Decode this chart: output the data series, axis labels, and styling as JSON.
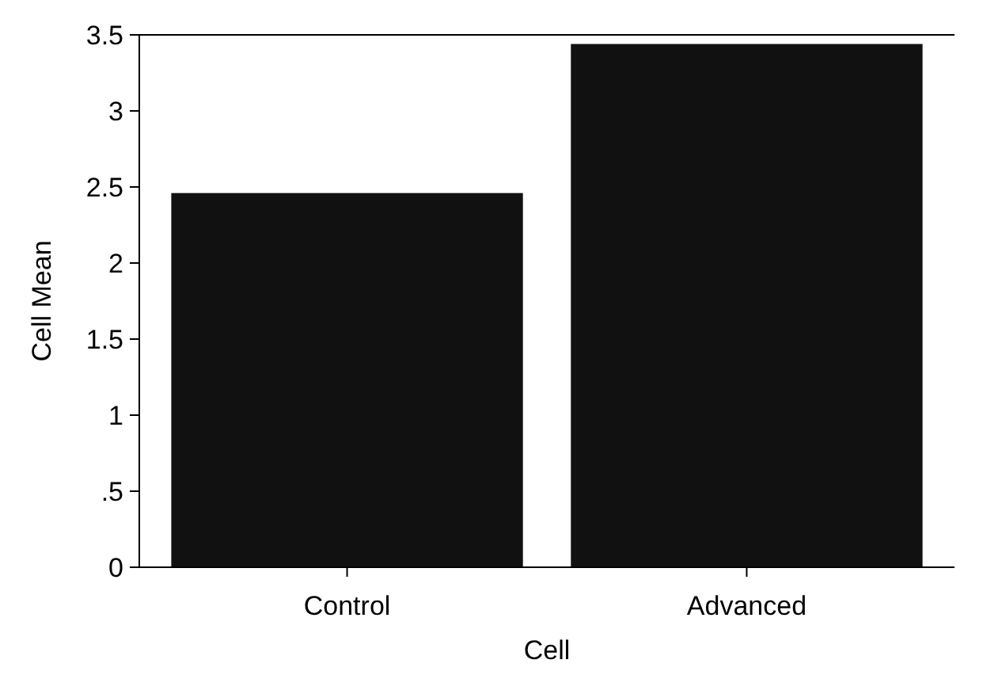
{
  "chart_data": {
    "type": "bar",
    "xlabel": "Cell",
    "ylabel": "Cell Mean",
    "categories": [
      "Control",
      "Advanced"
    ],
    "values": [
      2.46,
      3.44
    ],
    "color": "#111111",
    "ylim": [
      0,
      3.5
    ],
    "yticks": [
      0,
      {
        "value": 0.5,
        "label": ".5"
      },
      1,
      1.5,
      2,
      2.5,
      3,
      3.5
    ],
    "grid": false
  }
}
